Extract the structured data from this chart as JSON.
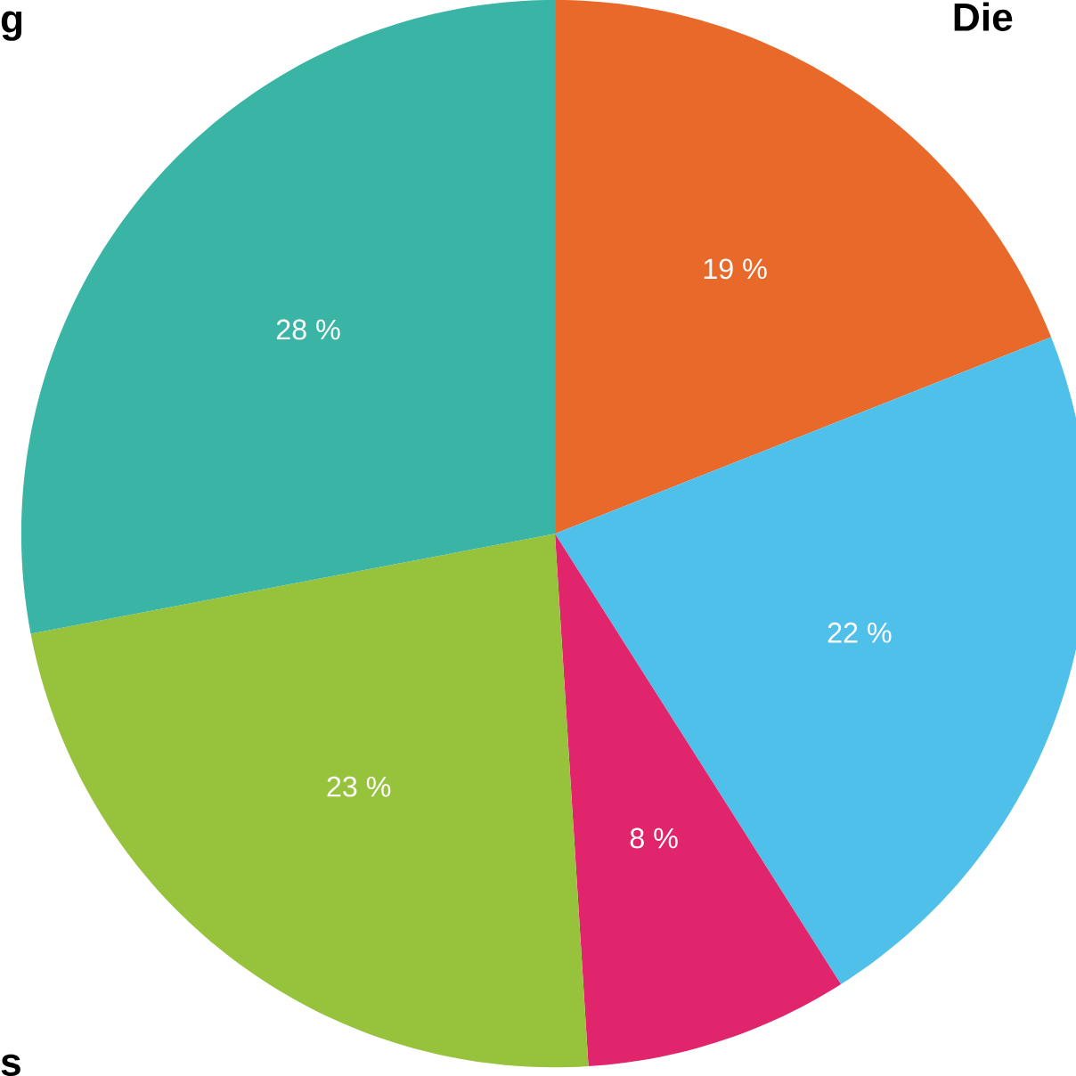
{
  "chart_data": {
    "type": "pie",
    "categories": [
      null,
      null,
      null,
      null,
      null
    ],
    "values": [
      19,
      22,
      8,
      23,
      28
    ],
    "colors": [
      "#e8692a",
      "#4fc0ea",
      "#e0256d",
      "#97c23c",
      "#3ab5a5"
    ],
    "value_labels": [
      "19 %",
      "22 %",
      "8 %",
      "23 %",
      "28 %"
    ],
    "annotations": [
      "g",
      "Die",
      "s"
    ]
  }
}
